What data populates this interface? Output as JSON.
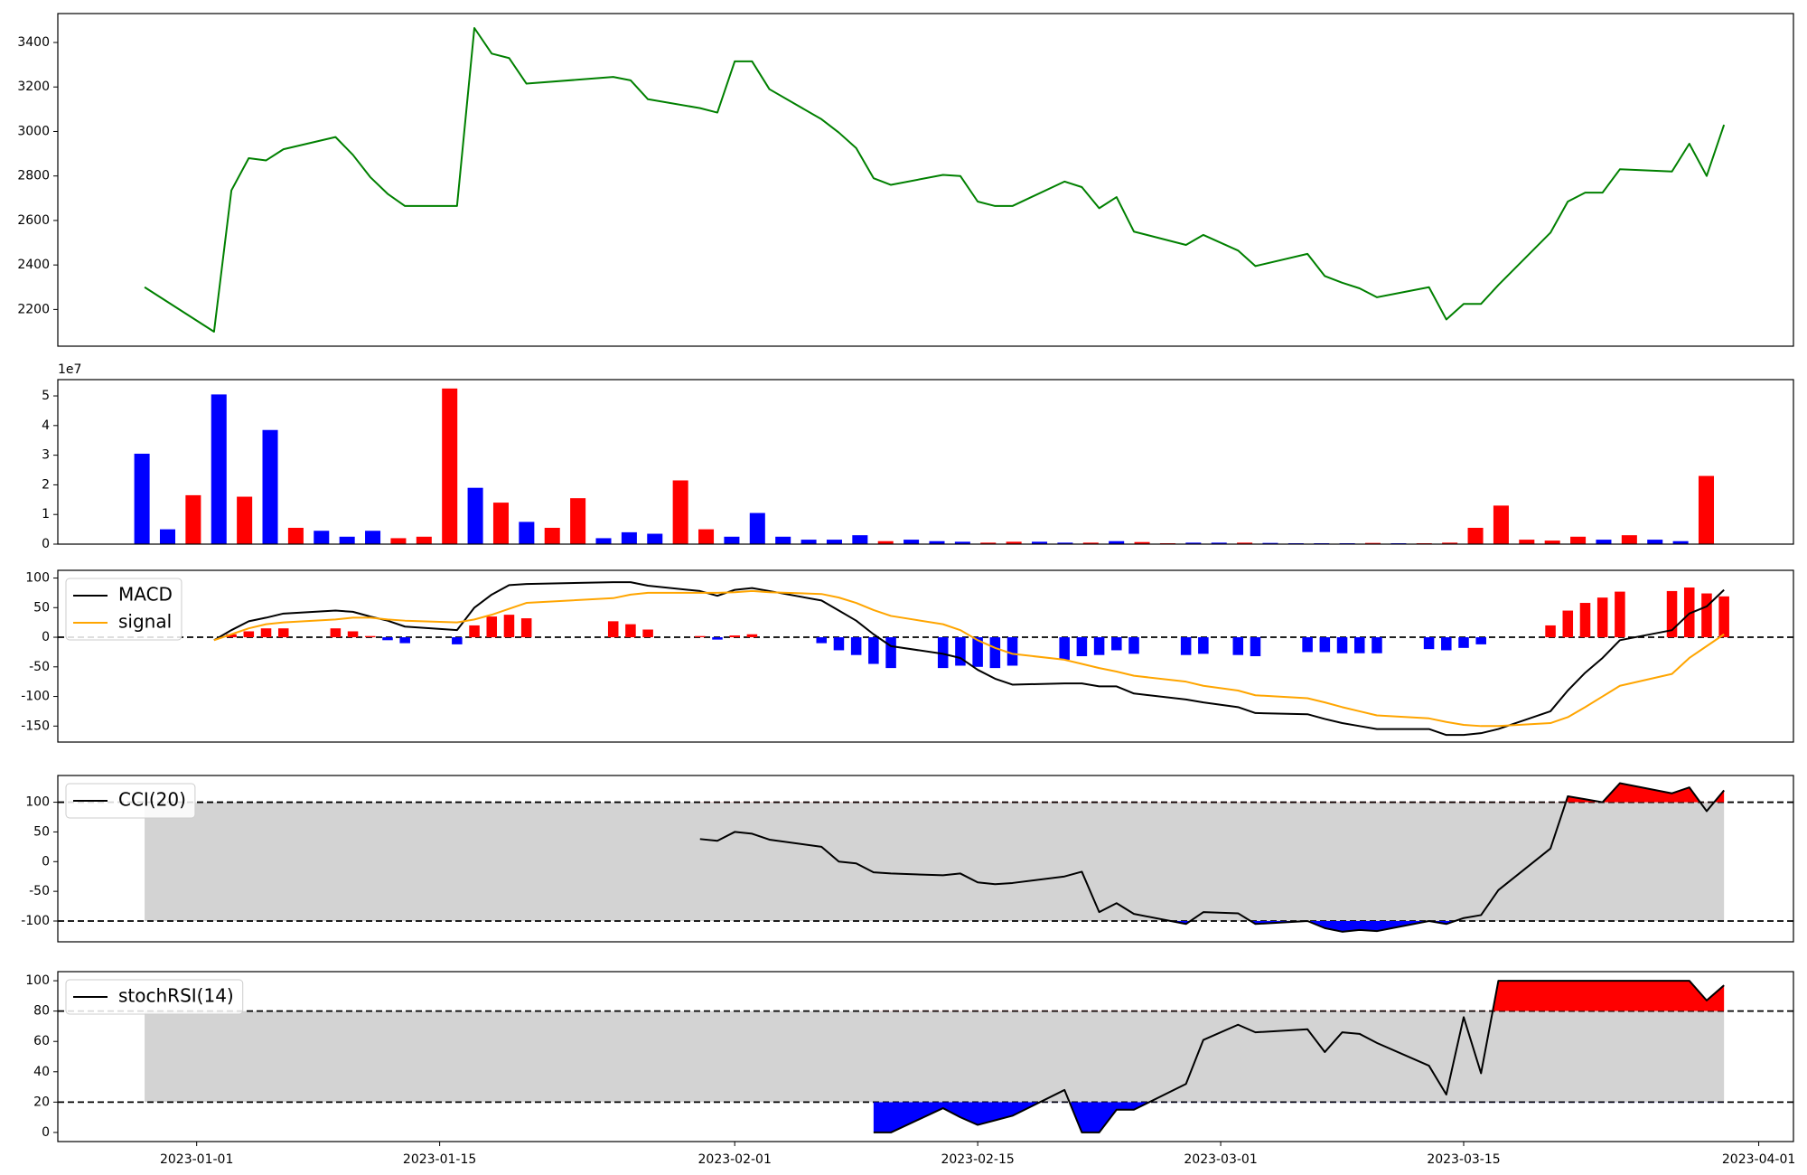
{
  "chart_data": [
    {
      "type": "line",
      "x": [
        "2022-12-29",
        "2023-01-02",
        "2023-01-03",
        "2023-01-04",
        "2023-01-05",
        "2023-01-06",
        "2023-01-09",
        "2023-01-10",
        "2023-01-11",
        "2023-01-12",
        "2023-01-13",
        "2023-01-16",
        "2023-01-17",
        "2023-01-18",
        "2023-01-19",
        "2023-01-20",
        "2023-01-25",
        "2023-01-26",
        "2023-01-27",
        "2023-01-30",
        "2023-01-31",
        "2023-02-01",
        "2023-02-02",
        "2023-02-03",
        "2023-02-06",
        "2023-02-07",
        "2023-02-08",
        "2023-02-09",
        "2023-02-10",
        "2023-02-13",
        "2023-02-14",
        "2023-02-15",
        "2023-02-16",
        "2023-02-17",
        "2023-02-20",
        "2023-02-21",
        "2023-02-22",
        "2023-02-23",
        "2023-02-24",
        "2023-02-27",
        "2023-02-28",
        "2023-03-02",
        "2023-03-03",
        "2023-03-06",
        "2023-03-07",
        "2023-03-08",
        "2023-03-09",
        "2023-03-10",
        "2023-03-13",
        "2023-03-14",
        "2023-03-15",
        "2023-03-16",
        "2023-03-17",
        "2023-03-20",
        "2023-03-21",
        "2023-03-22",
        "2023-03-23",
        "2023-03-24",
        "2023-03-27",
        "2023-03-28",
        "2023-03-29",
        "2023-03-30"
      ],
      "series": [
        {
          "color": "green",
          "values": [
            2300,
            2100,
            2735,
            2880,
            2870,
            2920,
            2975,
            2895,
            2795,
            2720,
            2665,
            2665,
            3465,
            3350,
            3330,
            3215,
            3245,
            3230,
            3145,
            3105,
            3085,
            3315,
            3315,
            3190,
            3055,
            2995,
            2925,
            2790,
            2760,
            2805,
            2800,
            2685,
            2665,
            2665,
            2775,
            2750,
            2655,
            2705,
            2550,
            2490,
            2535,
            2465,
            2395,
            2450,
            2350,
            2320,
            2295,
            2255,
            2300,
            2155,
            2225,
            2225,
            2310,
            2545,
            2685,
            2725,
            2725,
            2830,
            2820,
            2945,
            2800,
            3030
          ]
        }
      ],
      "xlim": [
        "2022-12-24",
        "2023-04-03"
      ],
      "ylim": [
        2035,
        3530
      ],
      "yticks": [
        2200,
        2400,
        2600,
        2800,
        3000,
        3200,
        3400
      ]
    },
    {
      "type": "bar",
      "values": [
        3.05,
        0.5,
        1.65,
        5.05,
        1.6,
        3.85,
        0.55,
        0.45,
        0.25,
        0.45,
        0.2,
        0.25,
        5.25,
        1.9,
        1.4,
        0.75,
        0.55,
        1.55,
        0.2,
        0.4,
        0.35,
        2.15,
        0.5,
        0.25,
        1.05,
        0.25,
        0.15,
        0.15,
        0.3,
        0.1,
        0.15,
        0.1,
        0.08,
        0.05,
        0.08,
        0.08,
        0.05,
        0.05,
        0.1,
        0.07,
        0.03,
        0.05,
        0.05,
        0.05,
        0.04,
        0.03,
        0.03,
        0.03,
        0.04,
        0.03,
        0.03,
        0.05,
        0.55,
        1.3,
        0.15,
        0.12,
        0.25,
        0.15,
        0.3,
        0.15,
        0.1,
        2.3
      ],
      "colors": [
        "blue",
        "blue",
        "red",
        "blue",
        "red",
        "blue",
        "red",
        "blue",
        "blue",
        "blue",
        "red",
        "red",
        "red",
        "blue",
        "red",
        "blue",
        "red",
        "red",
        "blue",
        "blue",
        "blue",
        "red",
        "red",
        "blue",
        "blue",
        "blue",
        "blue",
        "blue",
        "blue",
        "red",
        "blue",
        "blue",
        "blue",
        "red",
        "red",
        "blue",
        "blue",
        "red",
        "blue",
        "red",
        "red",
        "blue",
        "blue",
        "red",
        "blue",
        "blue",
        "blue",
        "blue",
        "red",
        "blue",
        "red",
        "red",
        "red",
        "red",
        "red",
        "red",
        "red",
        "blue",
        "red",
        "blue",
        "blue",
        "red"
      ],
      "xlim": [
        -3.28,
        64.4
      ],
      "ylim": [
        0,
        5.55
      ],
      "yticks": [
        0,
        1,
        2,
        3,
        4,
        5
      ],
      "offset_label": "1e7"
    },
    {
      "type": "line",
      "x": [
        "2022-12-29",
        "2023-01-02",
        "2023-01-03",
        "2023-01-04",
        "2023-01-05",
        "2023-01-06",
        "2023-01-09",
        "2023-01-10",
        "2023-01-11",
        "2023-01-12",
        "2023-01-13",
        "2023-01-16",
        "2023-01-17",
        "2023-01-18",
        "2023-01-19",
        "2023-01-20",
        "2023-01-25",
        "2023-01-26",
        "2023-01-27",
        "2023-01-30",
        "2023-01-31",
        "2023-02-01",
        "2023-02-02",
        "2023-02-03",
        "2023-02-06",
        "2023-02-07",
        "2023-02-08",
        "2023-02-09",
        "2023-02-10",
        "2023-02-13",
        "2023-02-14",
        "2023-02-15",
        "2023-02-16",
        "2023-02-17",
        "2023-02-20",
        "2023-02-21",
        "2023-02-22",
        "2023-02-23",
        "2023-02-24",
        "2023-02-27",
        "2023-02-28",
        "2023-03-02",
        "2023-03-03",
        "2023-03-06",
        "2023-03-07",
        "2023-03-08",
        "2023-03-09",
        "2023-03-10",
        "2023-03-13",
        "2023-03-14",
        "2023-03-15",
        "2023-03-16",
        "2023-03-17",
        "2023-03-20",
        "2023-03-21",
        "2023-03-22",
        "2023-03-23",
        "2023-03-24",
        "2023-03-27",
        "2023-03-28",
        "2023-03-29",
        "2023-03-30"
      ],
      "series": [
        {
          "name": "MACD",
          "color": "black",
          "values": [
            null,
            -5,
            12,
            27,
            33,
            40,
            45,
            43,
            35,
            28,
            18,
            12,
            50,
            72,
            88,
            90,
            93,
            93,
            87,
            78,
            70,
            80,
            83,
            78,
            62,
            45,
            28,
            5,
            -15,
            -28,
            -35,
            -55,
            -70,
            -80,
            -78,
            -78,
            -83,
            -83,
            -95,
            -105,
            -110,
            -118,
            -128,
            -130,
            -138,
            -145,
            -150,
            -155,
            -155,
            -165,
            -165,
            -162,
            -155,
            -125,
            -90,
            -60,
            -35,
            -5,
            12,
            40,
            52,
            80
          ]
        },
        {
          "name": "signal",
          "color": "orange",
          "values": [
            null,
            -5,
            5,
            15,
            22,
            25,
            30,
            33,
            33,
            30,
            28,
            25,
            30,
            38,
            48,
            58,
            66,
            72,
            75,
            75,
            75,
            76,
            78,
            76,
            73,
            67,
            58,
            46,
            36,
            22,
            12,
            -5,
            -18,
            -28,
            -38,
            -45,
            -52,
            -58,
            -65,
            -75,
            -82,
            -90,
            -98,
            -103,
            -110,
            -118,
            -125,
            -132,
            -137,
            -143,
            -148,
            -150,
            -150,
            -145,
            -135,
            -118,
            -100,
            -82,
            -62,
            -35,
            -15,
            5
          ]
        }
      ],
      "bars": {
        "pos_color": "red",
        "neg_color": "blue",
        "values": [
          null,
          null,
          5,
          10,
          15,
          15,
          15,
          10,
          2,
          -5,
          -10,
          -12,
          20,
          35,
          38,
          32,
          27,
          22,
          13,
          2,
          -4,
          3,
          5,
          null,
          -10,
          -22,
          -30,
          -45,
          -52,
          -52,
          -48,
          -50,
          -52,
          -48,
          -38,
          -32,
          -30,
          -22,
          -28,
          -30,
          -28,
          -30,
          -32,
          -25,
          -25,
          -27,
          -27,
          -27,
          -20,
          -22,
          -18,
          -12,
          null,
          20,
          45,
          58,
          67,
          77,
          78,
          84,
          74,
          69
        ]
      },
      "hlines": [
        0
      ],
      "xlim": [
        "2022-12-24",
        "2023-04-03"
      ],
      "ylim": [
        -177,
        113
      ],
      "yticks": [
        -150,
        -100,
        -50,
        0,
        50,
        100
      ],
      "legend": "upper left"
    },
    {
      "type": "line",
      "x": [
        "2022-12-29",
        "2023-01-02",
        "2023-01-03",
        "2023-01-04",
        "2023-01-05",
        "2023-01-06",
        "2023-01-09",
        "2023-01-10",
        "2023-01-11",
        "2023-01-12",
        "2023-01-13",
        "2023-01-16",
        "2023-01-17",
        "2023-01-18",
        "2023-01-19",
        "2023-01-20",
        "2023-01-25",
        "2023-01-26",
        "2023-01-27",
        "2023-01-30",
        "2023-01-31",
        "2023-02-01",
        "2023-02-02",
        "2023-02-03",
        "2023-02-06",
        "2023-02-07",
        "2023-02-08",
        "2023-02-09",
        "2023-02-10",
        "2023-02-13",
        "2023-02-14",
        "2023-02-15",
        "2023-02-16",
        "2023-02-17",
        "2023-02-20",
        "2023-02-21",
        "2023-02-22",
        "2023-02-23",
        "2023-02-24",
        "2023-02-27",
        "2023-02-28",
        "2023-03-02",
        "2023-03-03",
        "2023-03-06",
        "2023-03-07",
        "2023-03-08",
        "2023-03-09",
        "2023-03-10",
        "2023-03-13",
        "2023-03-14",
        "2023-03-15",
        "2023-03-16",
        "2023-03-17",
        "2023-03-20",
        "2023-03-21",
        "2023-03-22",
        "2023-03-23",
        "2023-03-24",
        "2023-03-27",
        "2023-03-28",
        "2023-03-29",
        "2023-03-30"
      ],
      "series": [
        {
          "name": "CCI(20)",
          "color": "black",
          "values": [
            null,
            null,
            null,
            null,
            null,
            null,
            null,
            null,
            null,
            null,
            null,
            null,
            null,
            null,
            null,
            null,
            null,
            null,
            null,
            38,
            35,
            50,
            47,
            37,
            25,
            0,
            -3,
            -18,
            -20,
            -23,
            -20,
            -35,
            -38,
            -36,
            -25,
            -17,
            -85,
            -70,
            -88,
            -105,
            -85,
            -87,
            -105,
            -100,
            -112,
            -118,
            -115,
            -117,
            -100,
            -105,
            -95,
            -90,
            -48,
            22,
            110,
            105,
            100,
            132,
            115,
            125,
            85,
            120
          ]
        }
      ],
      "band": [
        -100,
        100
      ],
      "band_color": "lightgray",
      "hlines": [
        -100,
        100
      ],
      "fill_above": "red",
      "fill_below": "blue",
      "xlim": [
        "2022-12-24",
        "2023-04-03"
      ],
      "ylim": [
        -135,
        145
      ],
      "yticks": [
        -100,
        -50,
        0,
        50,
        100
      ],
      "legend": "upper left"
    },
    {
      "type": "line",
      "x": [
        "2022-12-29",
        "2023-01-02",
        "2023-01-03",
        "2023-01-04",
        "2023-01-05",
        "2023-01-06",
        "2023-01-09",
        "2023-01-10",
        "2023-01-11",
        "2023-01-12",
        "2023-01-13",
        "2023-01-16",
        "2023-01-17",
        "2023-01-18",
        "2023-01-19",
        "2023-01-20",
        "2023-01-25",
        "2023-01-26",
        "2023-01-27",
        "2023-01-30",
        "2023-01-31",
        "2023-02-01",
        "2023-02-02",
        "2023-02-03",
        "2023-02-06",
        "2023-02-07",
        "2023-02-08",
        "2023-02-09",
        "2023-02-10",
        "2023-02-13",
        "2023-02-14",
        "2023-02-15",
        "2023-02-16",
        "2023-02-17",
        "2023-02-20",
        "2023-02-21",
        "2023-02-22",
        "2023-02-23",
        "2023-02-24",
        "2023-02-27",
        "2023-02-28",
        "2023-03-02",
        "2023-03-03",
        "2023-03-06",
        "2023-03-07",
        "2023-03-08",
        "2023-03-09",
        "2023-03-10",
        "2023-03-13",
        "2023-03-14",
        "2023-03-15",
        "2023-03-16",
        "2023-03-17",
        "2023-03-20",
        "2023-03-21",
        "2023-03-22",
        "2023-03-23",
        "2023-03-24",
        "2023-03-27",
        "2023-03-28",
        "2023-03-29",
        "2023-03-30"
      ],
      "series": [
        {
          "name": "stochRSI(14)",
          "color": "black",
          "values": [
            null,
            null,
            null,
            null,
            null,
            null,
            null,
            null,
            null,
            null,
            null,
            null,
            null,
            null,
            null,
            null,
            null,
            null,
            null,
            null,
            null,
            null,
            null,
            null,
            null,
            null,
            null,
            0,
            0,
            16,
            10,
            5,
            8,
            11,
            28,
            0,
            0,
            15,
            15,
            32,
            61,
            71,
            66,
            68,
            53,
            66,
            65,
            59,
            44,
            25,
            76,
            39,
            100,
            100,
            100,
            100,
            100,
            100,
            100,
            100,
            87,
            97
          ]
        }
      ],
      "band": [
        20,
        80
      ],
      "band_color": "lightgray",
      "hlines": [
        20,
        80
      ],
      "fill_above": "red",
      "fill_below": "blue",
      "xlim": [
        "2022-12-24",
        "2023-04-03"
      ],
      "xticks": [
        "2023-01-01",
        "2023-01-15",
        "2023-02-01",
        "2023-02-15",
        "2023-03-01",
        "2023-03-15",
        "2023-04-01"
      ],
      "ylim": [
        -6,
        106
      ],
      "yticks": [
        0,
        20,
        40,
        60,
        80,
        100
      ],
      "legend": "upper left"
    }
  ]
}
